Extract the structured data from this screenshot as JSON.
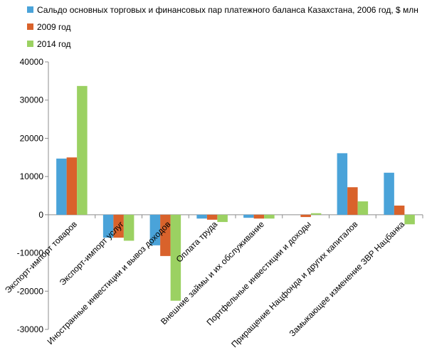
{
  "chart_data": {
    "type": "bar",
    "title": "",
    "xlabel": "",
    "ylabel": "",
    "ylim": [
      -30000,
      40000
    ],
    "ytick_step": 10000,
    "yticks": [
      "40000",
      "30000",
      "20000",
      "10000",
      "0",
      "-10000",
      "-20000",
      "-30000"
    ],
    "grid": false,
    "legend_position": "top-left",
    "categories": [
      "Экспорт-импорт товаров",
      "Экспорт-импорт услуг",
      "Иностранные инвестиции и вывоз доходов",
      "Оплата труда",
      "Внешние займы и их обслуживание",
      "Портфельные инвестиции и доходы",
      "Приращение Нацфонда и других капиталов",
      "Замыкающее изменение ЗВР Нацбанка"
    ],
    "series": [
      {
        "name": "Сальдо основных торговых и финансовых пар платежного баланса Казахстана, 2006 год, $ млн",
        "color": "#4aa3d9",
        "values": [
          14700,
          -6000,
          -8000,
          -1000,
          -800,
          0,
          16100,
          11000
        ]
      },
      {
        "name": "2009 год",
        "color": "#d9622b",
        "values": [
          15000,
          -6000,
          -10800,
          -1300,
          -1000,
          -600,
          7200,
          2400
        ]
      },
      {
        "name": "2014 год",
        "color": "#9bd162",
        "values": [
          33700,
          -6800,
          -22500,
          -1900,
          -1000,
          400,
          3500,
          -2500
        ]
      }
    ]
  }
}
